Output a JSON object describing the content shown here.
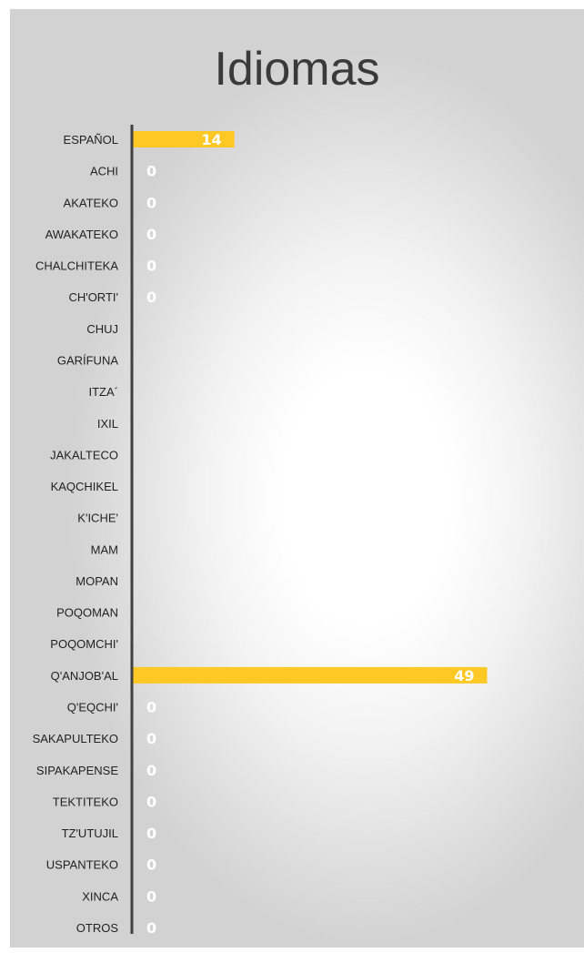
{
  "chart_data": {
    "type": "bar",
    "orientation": "horizontal",
    "title": "Idiomas",
    "categories": [
      "ESPAÑOL",
      "ACHI",
      "AKATEKO",
      "AWAKATEKO",
      "CHALCHITEKA",
      "CH'ORTI'",
      "CHUJ",
      "GARÍFUNA",
      "ITZA´",
      "IXIL",
      "JAKALTECO",
      "KAQCHIKEL",
      "K'ICHE'",
      "MAM",
      "MOPAN",
      "POQOMAN",
      "POQOMCHI'",
      "Q'ANJOB'AL",
      "Q'EQCHI'",
      "SAKAPULTEKO",
      "SIPAKAPENSE",
      "TEKTITEKO",
      "TZ'UTUJIL",
      "USPANTEKO",
      "XINCA",
      "OTROS"
    ],
    "values": [
      14,
      0,
      0,
      0,
      0,
      0,
      0,
      0,
      0,
      0,
      0,
      0,
      0,
      0,
      0,
      0,
      0,
      49,
      0,
      0,
      0,
      0,
      0,
      0,
      0,
      0
    ],
    "labels": [
      "14",
      "0",
      "0",
      "0",
      "0",
      "0",
      "",
      "",
      "",
      "",
      "",
      "",
      "",
      "",
      "",
      "",
      "",
      "49",
      "0",
      "0",
      "0",
      "0",
      "0",
      "0",
      "0",
      "0"
    ],
    "xlim": [
      0,
      49
    ],
    "grid": false,
    "legend": "none",
    "bar_color": "#ffc825",
    "axis_color": "#404040",
    "label_color": "#ffffff",
    "category_color": "#222222"
  }
}
